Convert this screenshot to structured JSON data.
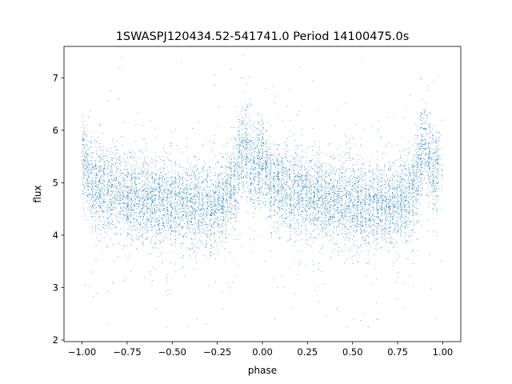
{
  "chart_data": {
    "type": "scatter",
    "title": "1SWASPJ120434.52-541741.0 Period 14100475.0s",
    "xlabel": "phase",
    "ylabel": "flux",
    "xlim": [
      -1.1,
      1.1
    ],
    "ylim": [
      1.97,
      7.6
    ],
    "xticks": [
      -1.0,
      -0.75,
      -0.5,
      -0.25,
      0.0,
      0.25,
      0.5,
      0.75,
      1.0
    ],
    "xtick_labels": [
      "−1.00",
      "−0.75",
      "−0.50",
      "−0.25",
      "0.00",
      "0.25",
      "0.50",
      "0.75",
      "1.00"
    ],
    "yticks": [
      2,
      3,
      4,
      5,
      6,
      7
    ],
    "ytick_labels": [
      "2",
      "3",
      "4",
      "5",
      "6",
      "7"
    ],
    "grid": false,
    "legend": "none",
    "marker_color": "#1f77b4",
    "approx_point_count": 9000,
    "profile": {
      "phase": [
        0.0,
        0.02,
        0.05,
        0.1,
        0.15,
        0.2,
        0.25,
        0.3,
        0.35,
        0.4,
        0.45,
        0.5,
        0.55,
        0.6,
        0.65,
        0.7,
        0.75,
        0.8,
        0.83,
        0.86,
        0.88,
        0.9,
        0.93,
        0.96,
        1.0
      ],
      "median_flux": [
        5.5,
        5.3,
        5.0,
        4.9,
        4.85,
        4.8,
        4.75,
        4.7,
        4.65,
        4.62,
        4.6,
        4.58,
        4.55,
        4.55,
        4.55,
        4.55,
        4.58,
        4.7,
        4.85,
        5.1,
        5.6,
        5.8,
        5.4,
        5.2,
        5.5
      ],
      "scatter_sigma": 0.42
    },
    "outliers": [
      {
        "phase": -0.83,
        "flux": 3.1
      },
      {
        "phase": -0.86,
        "flux": 2.3
      },
      {
        "phase": -0.59,
        "flux": 2.6
      },
      {
        "phase": -0.53,
        "flux": 2.25
      },
      {
        "phase": -0.41,
        "flux": 2.25
      },
      {
        "phase": -0.36,
        "flux": 2.4
      },
      {
        "phase": -0.26,
        "flux": 3.1
      },
      {
        "phase": -0.22,
        "flux": 2.6
      },
      {
        "phase": 0.01,
        "flux": 3.5
      },
      {
        "phase": 0.07,
        "flux": 2.4
      },
      {
        "phase": 0.12,
        "flux": 3.0
      },
      {
        "phase": 0.17,
        "flux": 2.6
      },
      {
        "phase": 0.41,
        "flux": 2.6
      },
      {
        "phase": 0.47,
        "flux": 2.25
      },
      {
        "phase": 0.59,
        "flux": 2.25
      },
      {
        "phase": 0.64,
        "flux": 2.4
      },
      {
        "phase": 0.74,
        "flux": 3.1
      },
      {
        "phase": 0.78,
        "flux": 2.6
      },
      {
        "phase": 0.96,
        "flux": 2.4
      },
      {
        "phase": 0.99,
        "flux": 3.5
      },
      {
        "phase": -0.45,
        "flux": 7.3
      },
      {
        "phase": 0.55,
        "flux": 7.3
      },
      {
        "phase": -0.12,
        "flux": 7.0
      },
      {
        "phase": 0.88,
        "flux": 7.0
      },
      {
        "phase": -0.79,
        "flux": 7.2
      },
      {
        "phase": 0.21,
        "flux": 7.2
      }
    ]
  }
}
